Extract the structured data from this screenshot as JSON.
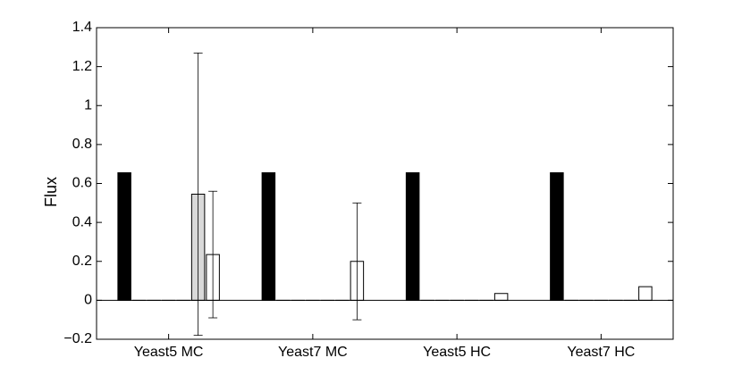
{
  "chart_data": {
    "type": "bar",
    "ylabel": "Flux",
    "ylim": [
      -0.2,
      1.4
    ],
    "yticks": [
      -0.2,
      0,
      0.2,
      0.4,
      0.6,
      0.8,
      1,
      1.2,
      1.4
    ],
    "ytick_labels": [
      "−0.2",
      "0",
      "0.2",
      "0.4",
      "0.6",
      "0.8",
      "1",
      "1.2",
      "1.4"
    ],
    "categories": [
      "Yeast5 MC",
      "Yeast7 MC",
      "Yeast5 HC",
      "Yeast7 HC"
    ],
    "grid": false,
    "series": [
      {
        "color": "#000000",
        "values": [
          0.655,
          0.655,
          0.655,
          0.655
        ],
        "error": [
          null,
          null,
          null,
          null
        ]
      },
      {
        "color": "#d9d9d9",
        "values": [
          0,
          0,
          0,
          0
        ],
        "error": [
          null,
          null,
          null,
          null
        ]
      },
      {
        "color": "#d9d9d9",
        "values": [
          0,
          0,
          0,
          0
        ],
        "error": [
          null,
          null,
          null,
          null
        ]
      },
      {
        "color": "#d9d9d9",
        "values": [
          0,
          0,
          0,
          0
        ],
        "error": [
          null,
          null,
          null,
          null
        ]
      },
      {
        "color": "#d9d9d9",
        "values": [
          0,
          0,
          0,
          0
        ],
        "error": [
          null,
          null,
          null,
          null
        ]
      },
      {
        "color": "#d9d9d9",
        "values": [
          0.545,
          0,
          0,
          0
        ],
        "error": [
          0.725,
          null,
          null,
          null
        ]
      },
      {
        "color": "#ffffff",
        "values": [
          0.235,
          0.2,
          0.035,
          0.07
        ],
        "error": [
          0.325,
          0.3,
          null,
          null
        ]
      }
    ]
  }
}
